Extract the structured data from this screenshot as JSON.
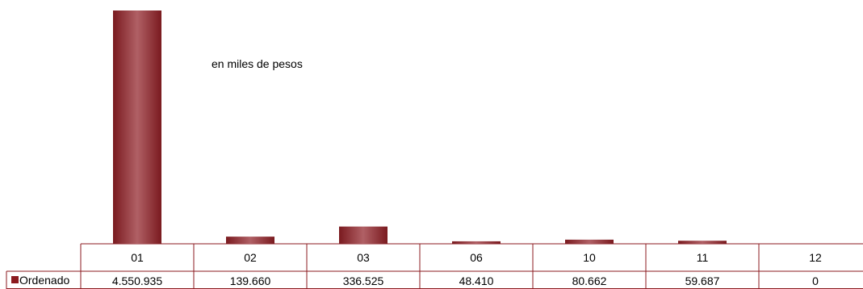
{
  "note": "en miles de pesos",
  "chart_data": {
    "type": "bar",
    "categories": [
      "01",
      "02",
      "03",
      "06",
      "10",
      "11",
      "12"
    ],
    "series": [
      {
        "name": "Ordenado",
        "values": [
          4550935,
          139660,
          336525,
          48410,
          80662,
          59687,
          0
        ],
        "labels": [
          "4.550.935",
          "139.660",
          "336.525",
          "48.410",
          "80.662",
          "59.687",
          "0"
        ]
      }
    ],
    "ymax": 4550935,
    "legend": "data-table-left",
    "colors": {
      "bar_dark": "#7a1a1f",
      "bar_light": "#b06065",
      "border": "#8b1a1f"
    }
  }
}
